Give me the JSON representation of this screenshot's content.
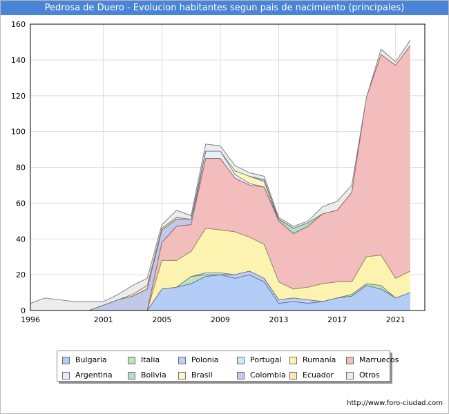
{
  "title": "Pedrosa de Duero - Evolucion habitantes segun pais de nacimiento (principales)",
  "source": "http://www.foro-ciudad.com",
  "chart_data": {
    "type": "area",
    "stacked": true,
    "title": "Pedrosa de Duero - Evolucion habitantes segun pais de nacimiento (principales)",
    "xlabel": "",
    "ylabel": "",
    "xlim": [
      1996,
      2023
    ],
    "ylim": [
      0,
      160
    ],
    "x_ticks": [
      "1996",
      "2001",
      "2005",
      "2009",
      "2013",
      "2017",
      "2021"
    ],
    "y_ticks": [
      "0",
      "20",
      "40",
      "60",
      "80",
      "100",
      "120",
      "140",
      "160"
    ],
    "grid": true,
    "legend_position": "bottom",
    "x": [
      1996,
      1997,
      1998,
      1999,
      2000,
      2001,
      2002,
      2003,
      2004,
      2005,
      2006,
      2007,
      2008,
      2009,
      2010,
      2011,
      2012,
      2013,
      2014,
      2015,
      2016,
      2017,
      2018,
      2019,
      2020,
      2021,
      2022
    ],
    "series": [
      {
        "name": "Bulgaria",
        "color": "#b3cdf7",
        "values": [
          0,
          0,
          0,
          0,
          0,
          0,
          0,
          0,
          0,
          12,
          13,
          15,
          19,
          20,
          18,
          20,
          16,
          4,
          5,
          4,
          5,
          7,
          8,
          14,
          12,
          7,
          10
        ]
      },
      {
        "name": "Italia",
        "color": "#bde3bf",
        "values": [
          0,
          0,
          0,
          0,
          0,
          0,
          0,
          0,
          0,
          0,
          0,
          4,
          1,
          0,
          0,
          0,
          0,
          0,
          0,
          0,
          0,
          0,
          1,
          1,
          2,
          0,
          0
        ]
      },
      {
        "name": "Polonia",
        "color": "#c2cff4",
        "values": [
          0,
          0,
          0,
          0,
          0,
          0,
          0,
          0,
          0,
          0,
          0,
          0,
          0,
          0,
          2,
          2,
          2,
          2,
          2,
          2,
          0,
          0,
          0,
          0,
          0,
          0,
          0
        ]
      },
      {
        "name": "Portugal",
        "color": "#c9e7f7",
        "values": [
          0,
          0,
          0,
          0,
          0,
          0,
          0,
          0,
          0,
          0,
          0,
          0,
          1,
          1,
          0,
          0,
          0,
          0,
          0,
          0,
          0,
          0,
          0,
          0,
          0,
          0,
          0
        ]
      },
      {
        "name": "Rumanía",
        "color": "#fdf3b0",
        "values": [
          0,
          0,
          0,
          0,
          0,
          0,
          0,
          0,
          0,
          16,
          15,
          14,
          25,
          24,
          24,
          19,
          19,
          10,
          5,
          7,
          10,
          9,
          7,
          15,
          17,
          11,
          12
        ]
      },
      {
        "name": "Marruecos",
        "color": "#f4bdbd",
        "values": [
          0,
          0,
          0,
          0,
          0,
          0,
          0,
          0,
          0,
          10,
          19,
          15,
          39,
          40,
          30,
          29,
          32,
          34,
          31,
          34,
          39,
          40,
          50,
          89,
          112,
          119,
          126
        ]
      },
      {
        "name": "Argentina",
        "color": "#e6effb",
        "values": [
          0,
          0,
          0,
          0,
          0,
          0,
          0,
          0,
          0,
          0,
          0,
          0,
          4,
          4,
          2,
          1,
          0,
          0,
          0,
          0,
          0,
          0,
          0,
          0,
          0,
          0,
          0
        ]
      },
      {
        "name": "Bolivia",
        "color": "#b4ddcc",
        "values": [
          0,
          0,
          0,
          0,
          0,
          0,
          0,
          0,
          0,
          0,
          0,
          0,
          0,
          0,
          0,
          0,
          0,
          1,
          3,
          2,
          0,
          0,
          0,
          0,
          0,
          0,
          0
        ]
      },
      {
        "name": "Brasil",
        "color": "#fef6c2",
        "values": [
          0,
          0,
          0,
          0,
          0,
          0,
          0,
          0,
          0,
          0,
          0,
          0,
          0,
          0,
          2,
          4,
          3,
          0,
          0,
          0,
          0,
          0,
          0,
          0,
          0,
          0,
          0
        ]
      },
      {
        "name": "Colombia",
        "color": "#c2c8e8",
        "values": [
          0,
          0,
          0,
          0,
          0,
          3,
          6,
          8,
          12,
          7,
          4,
          3,
          0,
          0,
          0,
          0,
          1,
          0,
          0,
          0,
          0,
          0,
          0,
          0,
          0,
          0,
          0
        ]
      },
      {
        "name": "Ecuador",
        "color": "#fbe8b4",
        "values": [
          0,
          0,
          0,
          0,
          0,
          0,
          0,
          1,
          2,
          1,
          1,
          0,
          0,
          0,
          0,
          0,
          0,
          0,
          0,
          0,
          0,
          0,
          0,
          0,
          0,
          0,
          0
        ]
      },
      {
        "name": "Otros",
        "color": "#ececec",
        "values": [
          4,
          7,
          6,
          5,
          5,
          2,
          3,
          5,
          4,
          2,
          4,
          2,
          4,
          3,
          3,
          2,
          2,
          1,
          1,
          1,
          4,
          5,
          4,
          0,
          3,
          2,
          3
        ]
      }
    ]
  }
}
